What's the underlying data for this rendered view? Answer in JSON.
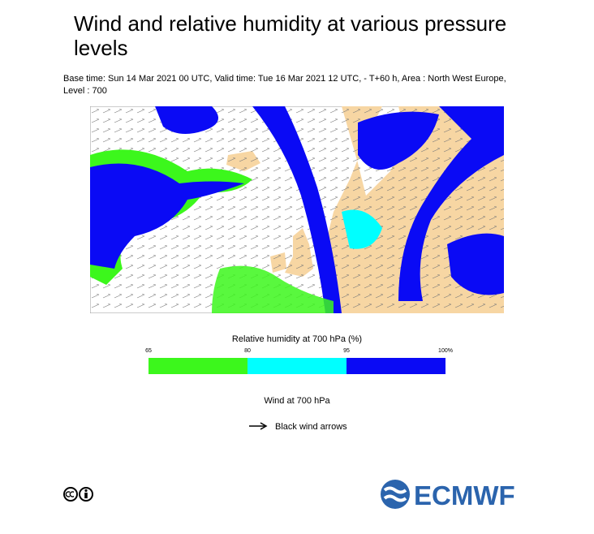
{
  "header": {
    "title": "Wind and relative humidity at various pressure levels",
    "subtitle": "Base time: Sun 14 Mar 2021 00 UTC, Valid time: Tue 16 Mar 2021 12 UTC, - T+60 h, Area : North West Europe, Level : 700"
  },
  "humidity_legend": {
    "title": "Relative humidity at 700 hPa (%)",
    "ticks": [
      "65",
      "80",
      "95",
      "100%"
    ],
    "colors": [
      "#3cf71c",
      "#00ffff",
      "#0a0af5"
    ]
  },
  "wind_legend": {
    "title": "Wind at 700 hPa",
    "arrow_label": "Black wind arrows"
  },
  "footer": {
    "logo": "ECMWF"
  }
}
